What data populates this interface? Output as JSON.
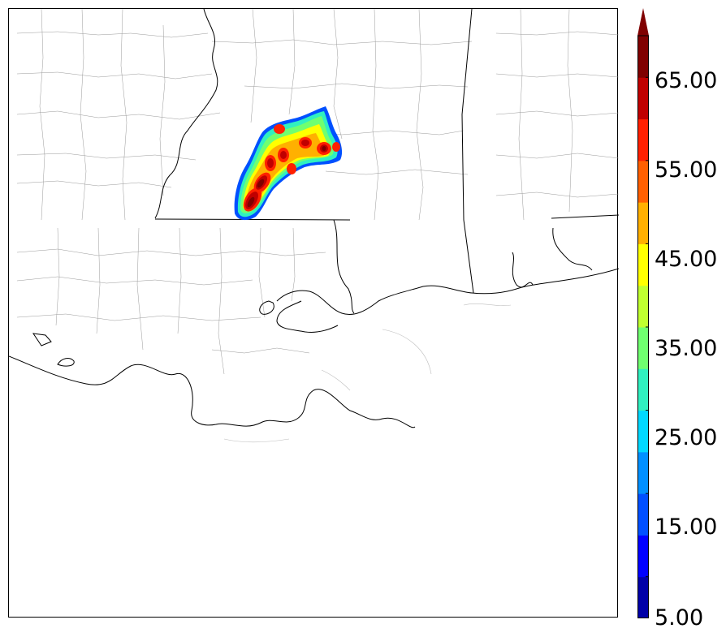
{
  "colorbar": {
    "labels": [
      "65.00",
      "55.00",
      "45.00",
      "35.00",
      "25.00",
      "15.00",
      "5.00"
    ],
    "colors": [
      "#0000a8",
      "#0000ff",
      "#0050ff",
      "#0090ff",
      "#00d8ff",
      "#30f0c0",
      "#70ff70",
      "#c0ff30",
      "#ffff00",
      "#ffb000",
      "#ff6000",
      "#ff2000",
      "#c00000",
      "#800000"
    ],
    "extend_color": "#800000"
  }
}
